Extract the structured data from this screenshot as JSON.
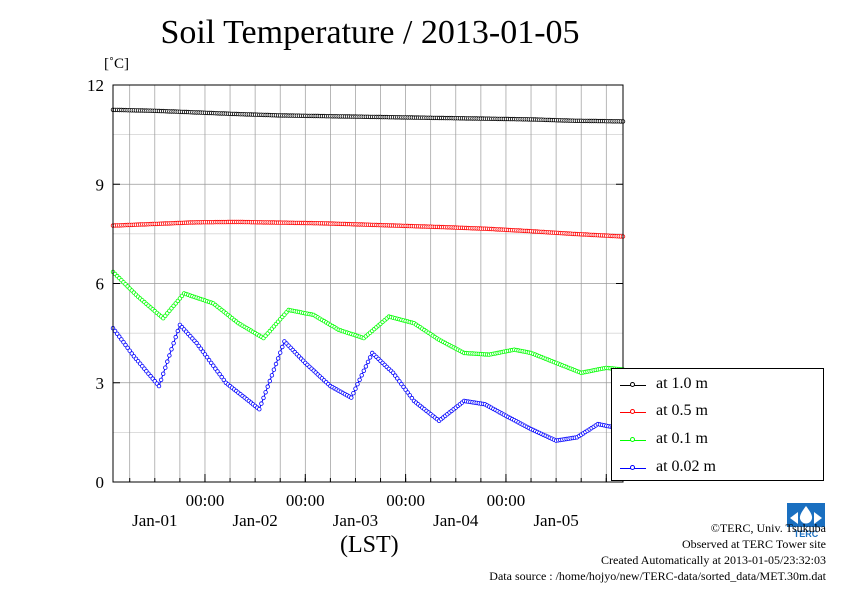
{
  "title": "Soil Temperature / 2013-01-05",
  "unit_label": "[˚C]",
  "xlabel": "(LST)",
  "credits": {
    "copyright": "©TERC, Univ. Tsukuba",
    "observed": "Observed at TERC Tower site",
    "created": "Created Automatically at 2013-01-05/23:32:03",
    "source": "Data source : /home/hojyo/new/TERC-data/sorted_data/MET.30m.dat"
  },
  "logo_text": "TERC",
  "colors": {
    "s1": "#000000",
    "s05": "#ff0000",
    "s01": "#00ff00",
    "s002": "#0000ff",
    "grid": "#999999"
  },
  "chart_data": {
    "type": "line",
    "ylim": [
      0,
      12
    ],
    "yticks": [
      0,
      3,
      6,
      9,
      12
    ],
    "xlim_hours": [
      0,
      122
    ],
    "x_ticks": [
      {
        "hour": 22,
        "time": "00:00",
        "date": "Jan-01"
      },
      {
        "hour": 46,
        "time": "00:00",
        "date": "Jan-02"
      },
      {
        "hour": 70,
        "time": "00:00",
        "date": "Jan-03"
      },
      {
        "hour": 94,
        "time": "00:00",
        "date": "Jan-04"
      },
      {
        "hour": 118,
        "time": "",
        "date": "Jan-05"
      }
    ],
    "grid": true,
    "legend_position": "lower-right-outside",
    "series": [
      {
        "name": "at 1.0 m",
        "color": "#000000",
        "x": [
          0,
          10,
          20,
          30,
          40,
          50,
          60,
          70,
          80,
          90,
          100,
          110,
          122
        ],
        "y": [
          11.25,
          11.22,
          11.17,
          11.12,
          11.08,
          11.06,
          11.04,
          11.02,
          11.0,
          10.98,
          10.96,
          10.92,
          10.9
        ]
      },
      {
        "name": "at 0.5 m",
        "color": "#ff0000",
        "x": [
          0,
          10,
          20,
          30,
          40,
          50,
          60,
          70,
          80,
          90,
          100,
          110,
          122
        ],
        "y": [
          7.75,
          7.8,
          7.85,
          7.86,
          7.84,
          7.82,
          7.78,
          7.74,
          7.7,
          7.65,
          7.58,
          7.5,
          7.42
        ]
      },
      {
        "name": "at 0.1 m",
        "color": "#00ff00",
        "x": [
          0,
          6,
          12,
          17,
          24,
          30,
          36,
          42,
          48,
          54,
          60,
          66,
          72,
          78,
          84,
          90,
          96,
          100,
          106,
          112,
          118,
          122
        ],
        "y": [
          6.35,
          5.6,
          4.95,
          5.7,
          5.4,
          4.8,
          4.35,
          5.2,
          5.05,
          4.6,
          4.35,
          5.0,
          4.8,
          4.3,
          3.9,
          3.85,
          4.0,
          3.9,
          3.6,
          3.3,
          3.45,
          3.4
        ]
      },
      {
        "name": "at 0.02 m",
        "color": "#0000ff",
        "x": [
          0,
          5,
          11,
          16,
          20,
          27,
          35,
          41,
          46,
          52,
          57,
          62,
          67,
          72,
          78,
          84,
          89,
          94,
          100,
          106,
          111,
          116,
          122
        ],
        "y": [
          4.65,
          3.8,
          2.9,
          4.75,
          4.2,
          3.0,
          2.2,
          4.25,
          3.6,
          2.9,
          2.55,
          3.9,
          3.3,
          2.45,
          1.85,
          2.45,
          2.35,
          2.0,
          1.6,
          1.25,
          1.35,
          1.75,
          1.6
        ]
      }
    ]
  }
}
